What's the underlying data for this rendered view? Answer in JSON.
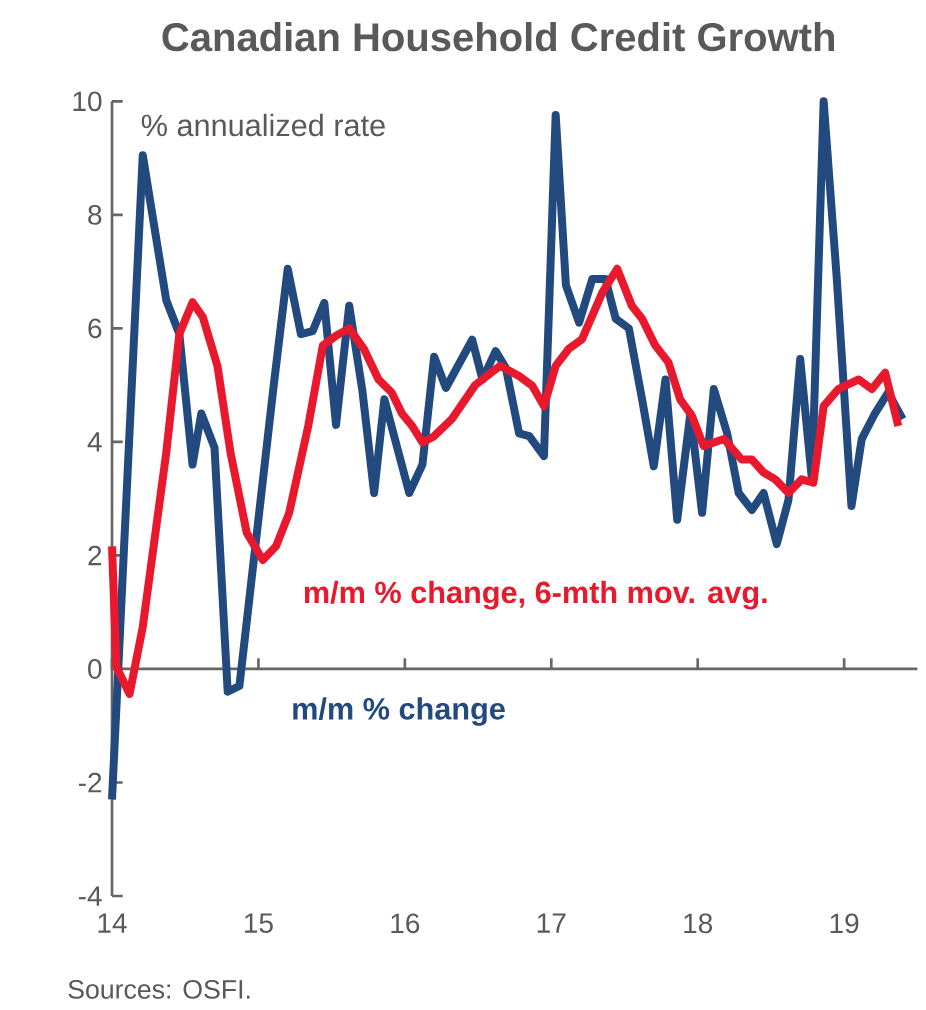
{
  "chart_data": {
    "type": "line",
    "title": "Canadian Household Credit Growth",
    "ylabel": "% annualized rate",
    "annotations": [
      "Sources: OSFI."
    ],
    "xlim": [
      14,
      19.5
    ],
    "xticks": [
      14,
      15,
      16,
      17,
      18,
      19
    ],
    "ylim": [
      -4,
      10
    ],
    "yticks": [
      -4,
      -2,
      0,
      2,
      4,
      6,
      8,
      10
    ],
    "marker": "none",
    "line_style": "solid",
    "series": [
      {
        "name": "m/m % change",
        "color": "#224a7e",
        "x": [
          14.0,
          14.21,
          14.37,
          14.46,
          14.55,
          14.61,
          14.7,
          14.79,
          14.87,
          15.1,
          15.2,
          15.29,
          15.37,
          15.45,
          15.53,
          15.62,
          15.71,
          15.79,
          15.86,
          16.03,
          16.12,
          16.2,
          16.28,
          16.46,
          16.53,
          16.62,
          16.69,
          16.78,
          16.85,
          16.95,
          17.03,
          17.1,
          17.19,
          17.28,
          17.37,
          17.44,
          17.53,
          17.62,
          17.7,
          17.78,
          17.86,
          17.95,
          18.03,
          18.11,
          18.2,
          18.28,
          18.37,
          18.45,
          18.54,
          18.62,
          18.7,
          18.78,
          18.86,
          18.95,
          19.05,
          19.12,
          19.21,
          19.3,
          19.4
        ],
        "values": [
          -2.3,
          9.05,
          6.5,
          5.9,
          3.6,
          4.5,
          3.9,
          -0.4,
          -0.3,
          4.9,
          7.05,
          5.9,
          5.95,
          6.45,
          4.3,
          6.4,
          4.9,
          3.1,
          4.75,
          3.1,
          3.6,
          5.5,
          4.95,
          5.8,
          5.1,
          5.6,
          5.3,
          4.15,
          4.1,
          3.75,
          9.76,
          6.76,
          6.1,
          6.87,
          6.87,
          6.17,
          6.0,
          4.75,
          3.57,
          5.1,
          2.63,
          4.5,
          2.75,
          4.93,
          4.16,
          3.1,
          2.8,
          3.1,
          2.2,
          2.98,
          5.46,
          3.34,
          10.0,
          6.87,
          2.87,
          4.05,
          4.5,
          4.87,
          4.4
        ]
      },
      {
        "name": "m/m % change, 6-mth mov. avg.",
        "color": "#e8192c",
        "x": [
          14.0,
          14.03,
          14.12,
          14.21,
          14.37,
          14.46,
          14.55,
          14.62,
          14.72,
          14.81,
          14.92,
          15.03,
          15.12,
          15.21,
          15.34,
          15.44,
          15.53,
          15.62,
          15.72,
          15.82,
          15.91,
          15.98,
          16.05,
          16.12,
          16.2,
          16.32,
          16.48,
          16.65,
          16.78,
          16.87,
          16.95,
          17.03,
          17.12,
          17.21,
          17.35,
          17.45,
          17.55,
          17.62,
          17.71,
          17.8,
          17.88,
          17.96,
          18.04,
          18.18,
          18.3,
          18.37,
          18.45,
          18.53,
          18.62,
          18.71,
          18.79,
          18.86,
          18.96,
          19.1,
          19.19,
          19.28,
          19.37
        ],
        "values": [
          2.16,
          0.04,
          -0.44,
          0.74,
          3.8,
          5.9,
          6.46,
          6.2,
          5.34,
          3.8,
          2.4,
          1.92,
          2.16,
          2.75,
          4.28,
          5.7,
          5.87,
          6.0,
          5.64,
          5.1,
          4.87,
          4.5,
          4.28,
          3.99,
          4.1,
          4.4,
          5.0,
          5.34,
          5.16,
          4.99,
          4.63,
          5.34,
          5.64,
          5.81,
          6.64,
          7.05,
          6.4,
          6.17,
          5.7,
          5.4,
          4.75,
          4.46,
          3.93,
          4.05,
          3.69,
          3.69,
          3.46,
          3.34,
          3.1,
          3.34,
          3.28,
          4.63,
          4.93,
          5.1,
          4.93,
          5.22,
          4.28
        ]
      }
    ]
  }
}
